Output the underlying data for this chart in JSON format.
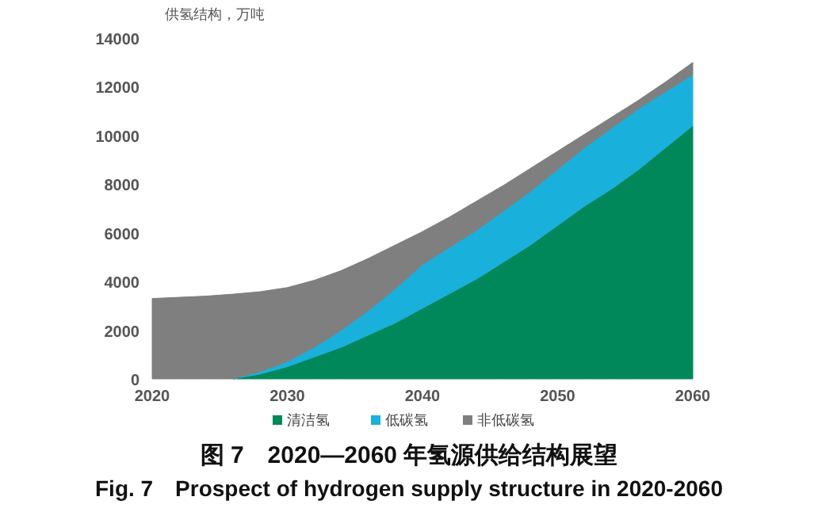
{
  "chart_data": {
    "type": "area",
    "stacked": true,
    "title": "图 7　2020—2060 年氢源供给结构展望",
    "subtitle": "Fig. 7　Prospect of hydrogen supply structure in 2020-2060",
    "ylabel": "供氢结构，万吨",
    "x": [
      2020,
      2022,
      2024,
      2026,
      2028,
      2030,
      2032,
      2034,
      2036,
      2038,
      2040,
      2042,
      2044,
      2046,
      2048,
      2050,
      2052,
      2054,
      2056,
      2058,
      2060
    ],
    "series": [
      {
        "name": "清洁氢",
        "color": "#00875a",
        "values": [
          null,
          null,
          null,
          0,
          200,
          500,
          900,
          1300,
          1800,
          2300,
          2900,
          3500,
          4100,
          4800,
          5500,
          6300,
          7100,
          7800,
          8600,
          9500,
          10400
        ]
      },
      {
        "name": "低碳氢",
        "color": "#1ab0dc",
        "values": [
          null,
          null,
          null,
          0,
          100,
          200,
          400,
          700,
          1000,
          1400,
          1800,
          1900,
          2000,
          2100,
          2200,
          2300,
          2400,
          2500,
          2500,
          2300,
          2100
        ]
      },
      {
        "name": "非低碳氢",
        "color": "#7f7f7f",
        "values": [
          3300,
          3350,
          3400,
          3480,
          3280,
          3050,
          2750,
          2450,
          2150,
          1800,
          1350,
          1250,
          1200,
          1050,
          950,
          750,
          550,
          450,
          350,
          400,
          500
        ]
      }
    ],
    "xlim": [
      2020,
      2060
    ],
    "xticks": [
      2020,
      2030,
      2040,
      2050,
      2060
    ],
    "ylim": [
      0,
      14000
    ],
    "yticks": [
      0,
      2000,
      4000,
      6000,
      8000,
      10000,
      12000,
      14000
    ],
    "grid": false,
    "legend": "bottom"
  }
}
